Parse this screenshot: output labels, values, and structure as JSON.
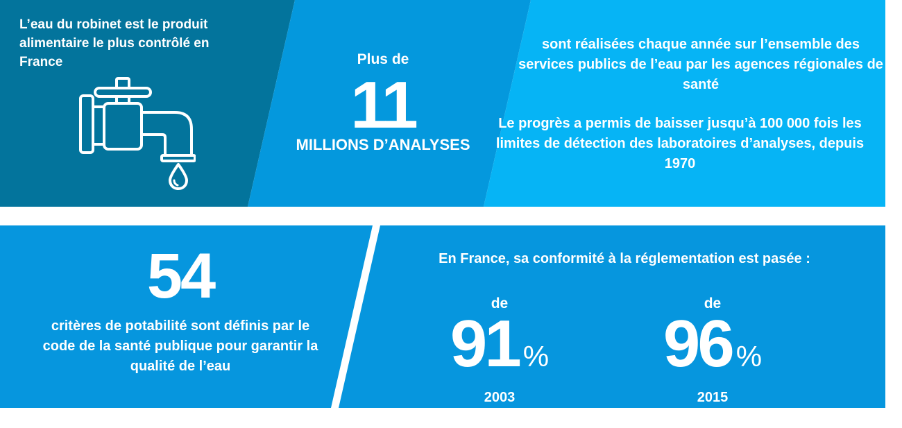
{
  "colors": {
    "panel_dark": "#03749c",
    "panel_mid": "#0498dd",
    "panel_light": "#06b4f5",
    "bottom_band": "#0696de",
    "text": "#ffffff"
  },
  "panel_tap": {
    "text": "L’eau du robinet est le produit alimentaire le plus contrôlé en France",
    "icon": "faucet-icon"
  },
  "panel_analyses": {
    "prefix": "Plus de",
    "number": "11",
    "unit": "MILLIONS D’ANALYSES"
  },
  "panel_details": {
    "paragraph1": "sont réalisées chaque année sur l’ensemble des services publics de l’eau par les agences régionales de santé",
    "paragraph2": "Le progrès a permis de baisser jusqu’à 100 000 fois les limites de détection des laboratoires d’analyses, depuis 1970"
  },
  "panel_criteria": {
    "number": "54",
    "text": "critères de potabilité sont définis par le code de la santé publique pour garantir la qualité de l’eau"
  },
  "panel_conformity": {
    "intro": "En France, sa conformité à la réglementation est pasée :",
    "stats": [
      {
        "prefix": "de",
        "value": "91",
        "unit": "%",
        "year": "2003"
      },
      {
        "prefix": "de",
        "value": "96",
        "unit": "%",
        "year": "2015"
      }
    ]
  }
}
